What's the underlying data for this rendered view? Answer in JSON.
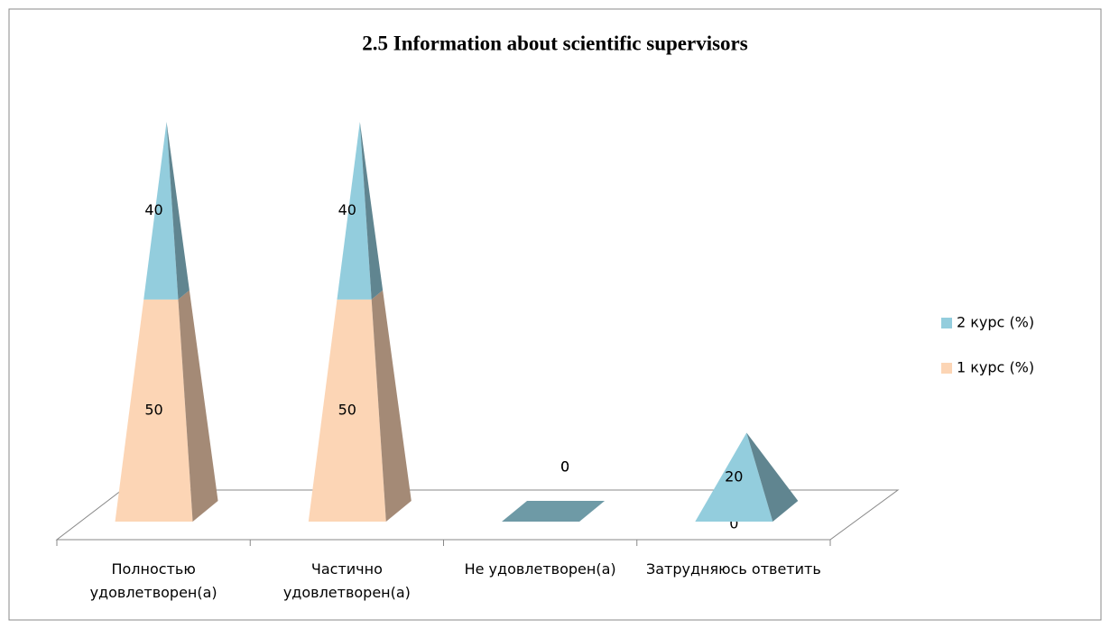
{
  "chart_data": {
    "type": "pyramid",
    "title": "2.5 Information about scientific supervisors",
    "categories": [
      "Полностью удовлетворен(а)",
      "Частично удовлетворен(а)",
      "Не удовлетворен(а)",
      "Затрудняюсь ответить"
    ],
    "series": [
      {
        "name": "1 курс (%)",
        "color": "#fcd5b5",
        "values": [
          50,
          50,
          0,
          0
        ]
      },
      {
        "name": "2 курс (%)",
        "color": "#93cddd",
        "values": [
          40,
          40,
          0,
          20
        ]
      }
    ]
  }
}
